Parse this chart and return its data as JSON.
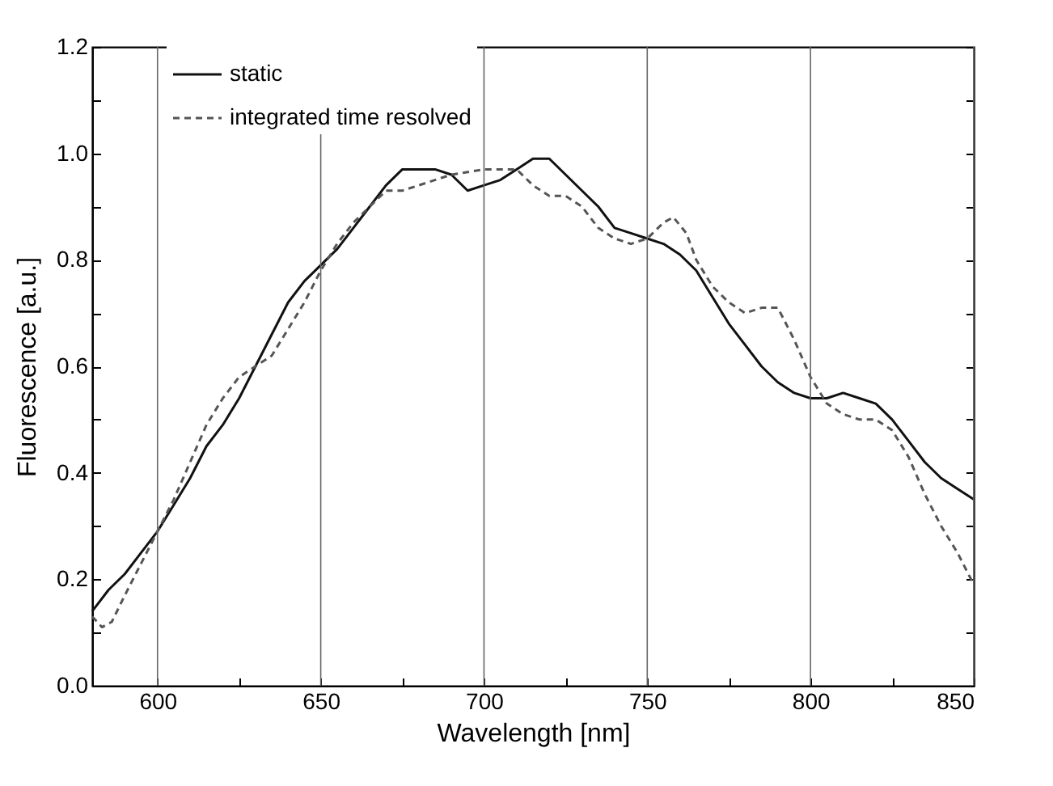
{
  "chart_data": {
    "type": "line",
    "xlabel": "Wavelength [nm]",
    "ylabel": "Fluorescence [a.u.]",
    "xlim": [
      580,
      850
    ],
    "ylim": [
      0,
      1.2
    ],
    "xticks": [
      {
        "value": 600,
        "label": "600"
      },
      {
        "value": 625,
        "label": null
      },
      {
        "value": 650,
        "label": "650"
      },
      {
        "value": 675,
        "label": null
      },
      {
        "value": 700,
        "label": "700"
      },
      {
        "value": 725,
        "label": null
      },
      {
        "value": 750,
        "label": "750"
      },
      {
        "value": 775,
        "label": null
      },
      {
        "value": 800,
        "label": "800"
      },
      {
        "value": 825,
        "label": null
      },
      {
        "value": 850,
        "label": "850"
      }
    ],
    "yticks": [
      {
        "value": 0,
        "label": "0.0"
      },
      {
        "value": 0.1,
        "label": null
      },
      {
        "value": 0.2,
        "label": "0.2"
      },
      {
        "value": 0.3,
        "label": null
      },
      {
        "value": 0.4,
        "label": "0.4"
      },
      {
        "value": 0.5,
        "label": null
      },
      {
        "value": 0.6,
        "label": "0.6"
      },
      {
        "value": 0.7,
        "label": null
      },
      {
        "value": 0.8,
        "label": "0.8"
      },
      {
        "value": 0.9,
        "label": null
      },
      {
        "value": 1.0,
        "label": "1.0"
      },
      {
        "value": 1.1,
        "label": null
      },
      {
        "value": 1.2,
        "label": "1.2"
      }
    ],
    "grid": "x",
    "legend": "top left",
    "series": [
      {
        "name": "static",
        "color": "#111111",
        "line_style": "solid",
        "x": [
          580,
          585,
          590,
          595,
          600,
          605,
          610,
          615,
          620,
          625,
          630,
          635,
          640,
          645,
          650,
          655,
          660,
          665,
          670,
          675,
          680,
          685,
          690,
          695,
          700,
          705,
          710,
          715,
          720,
          725,
          730,
          735,
          740,
          745,
          750,
          755,
          760,
          765,
          770,
          775,
          780,
          785,
          790,
          795,
          800,
          805,
          810,
          815,
          820,
          825,
          830,
          835,
          840,
          845,
          850
        ],
        "values": [
          0.14,
          0.18,
          0.21,
          0.25,
          0.29,
          0.34,
          0.39,
          0.45,
          0.49,
          0.54,
          0.6,
          0.66,
          0.72,
          0.76,
          0.79,
          0.82,
          0.86,
          0.9,
          0.94,
          0.97,
          0.97,
          0.97,
          0.96,
          0.93,
          0.94,
          0.95,
          0.97,
          0.99,
          0.99,
          0.96,
          0.93,
          0.9,
          0.86,
          0.85,
          0.84,
          0.83,
          0.81,
          0.78,
          0.73,
          0.68,
          0.64,
          0.6,
          0.57,
          0.55,
          0.54,
          0.54,
          0.55,
          0.54,
          0.53,
          0.5,
          0.46,
          0.42,
          0.39,
          0.37,
          0.35
        ]
      },
      {
        "name": "integrated time resolved",
        "color": "#555555",
        "line_style": "dashed",
        "x": [
          580,
          583,
          586,
          590,
          595,
          600,
          605,
          610,
          615,
          620,
          625,
          630,
          635,
          640,
          645,
          650,
          655,
          660,
          665,
          670,
          675,
          680,
          690,
          700,
          710,
          715,
          720,
          725,
          730,
          735,
          740,
          745,
          750,
          755,
          758,
          762,
          765,
          770,
          775,
          780,
          785,
          790,
          795,
          800,
          805,
          810,
          815,
          820,
          825,
          830,
          835,
          840,
          845,
          850
        ],
        "values": [
          0.13,
          0.11,
          0.12,
          0.17,
          0.23,
          0.29,
          0.35,
          0.42,
          0.49,
          0.54,
          0.58,
          0.6,
          0.62,
          0.67,
          0.72,
          0.78,
          0.83,
          0.87,
          0.9,
          0.93,
          0.93,
          0.94,
          0.96,
          0.97,
          0.97,
          0.94,
          0.92,
          0.92,
          0.9,
          0.86,
          0.84,
          0.83,
          0.84,
          0.87,
          0.88,
          0.85,
          0.8,
          0.75,
          0.72,
          0.7,
          0.71,
          0.71,
          0.65,
          0.58,
          0.53,
          0.51,
          0.5,
          0.5,
          0.48,
          0.43,
          0.36,
          0.3,
          0.25,
          0.19
        ]
      }
    ]
  }
}
